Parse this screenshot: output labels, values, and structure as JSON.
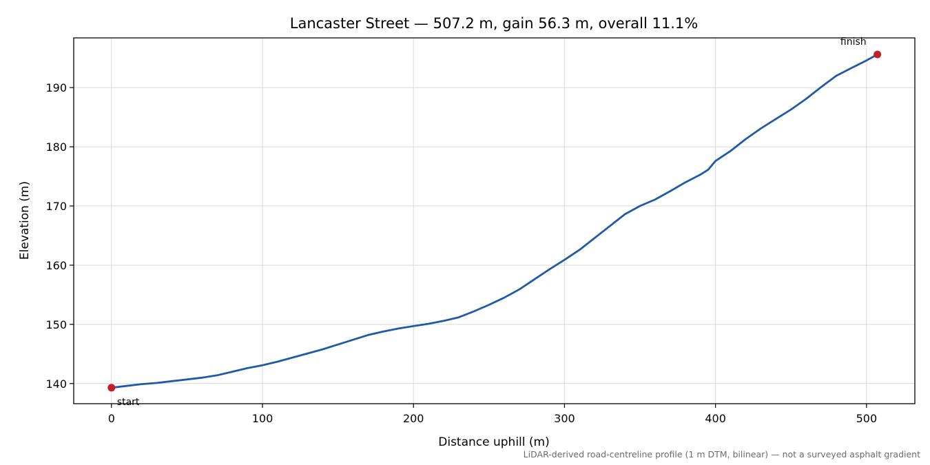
{
  "chart_data": {
    "type": "line",
    "title": "Lancaster Street — 507.2 m, gain 56.3 m, overall 11.1%",
    "xlabel": "Distance uphill (m)",
    "ylabel": "Elevation (m)",
    "xlim": [
      -25,
      532
    ],
    "ylim": [
      136.6,
      198.4
    ],
    "xticks": [
      0,
      100,
      200,
      300,
      400,
      500
    ],
    "yticks": [
      140,
      150,
      160,
      170,
      180,
      190
    ],
    "grid": true,
    "note": "LiDAR-derived road-centreline profile (1 m DTM, bilinear) — not a surveyed asphalt gradient",
    "colors": {
      "line": "#1f5aa6",
      "marker": "#c0202a",
      "grid": "#d9d9d9",
      "note": "#6b6b6b"
    },
    "series": [
      {
        "x": [
          0,
          10,
          20,
          30,
          40,
          50,
          60,
          70,
          80,
          90,
          100,
          110,
          120,
          130,
          140,
          150,
          160,
          170,
          180,
          190,
          200,
          210,
          220,
          230,
          240,
          250,
          260,
          270,
          280,
          290,
          300,
          310,
          320,
          330,
          340,
          350,
          360,
          370,
          380,
          390,
          395,
          400,
          410,
          420,
          430,
          440,
          450,
          460,
          470,
          480,
          490,
          500,
          507.2
        ],
        "y": [
          139.3,
          139.6,
          139.9,
          140.1,
          140.4,
          140.7,
          141.0,
          141.4,
          142.0,
          142.6,
          143.1,
          143.7,
          144.4,
          145.1,
          145.8,
          146.6,
          147.4,
          148.2,
          148.8,
          149.3,
          149.7,
          150.1,
          150.6,
          151.2,
          152.2,
          153.3,
          154.5,
          155.9,
          157.6,
          159.3,
          160.9,
          162.6,
          164.6,
          166.6,
          168.6,
          170.0,
          171.1,
          172.5,
          174.0,
          175.3,
          176.1,
          177.6,
          179.3,
          181.3,
          183.1,
          184.7,
          186.3,
          188.1,
          190.1,
          192.0,
          193.3,
          194.6,
          195.6
        ]
      }
    ],
    "markers": [
      {
        "x": 0,
        "y": 139.3,
        "label": "start"
      },
      {
        "x": 507.2,
        "y": 195.6,
        "label": "finish"
      }
    ]
  }
}
